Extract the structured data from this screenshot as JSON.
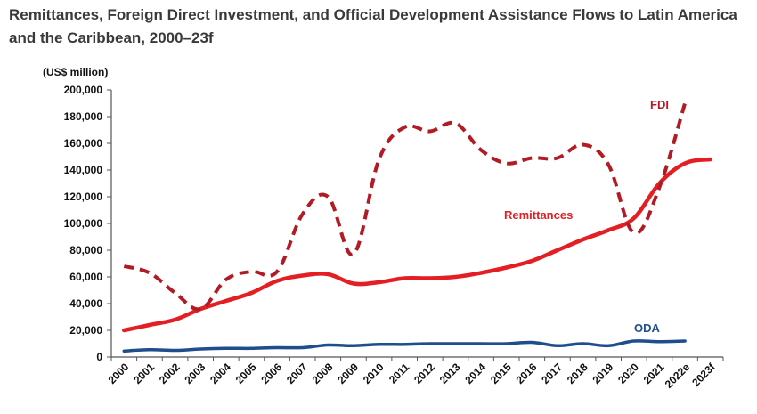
{
  "title": "Remittances, Foreign Direct Investment, and Official Development Assistance Flows to Latin America and the Caribbean, 2000–23f",
  "chart_data": {
    "type": "line",
    "title": "Remittances, Foreign Direct Investment, and Official Development Assistance Flows to Latin America and the Caribbean, 2000–23f",
    "ylabel": "(US$ million)",
    "xlabel": "",
    "ylim": [
      0,
      200000
    ],
    "y_ticks": [
      "0",
      "20,000",
      "40,000",
      "60,000",
      "80,000",
      "100,000",
      "120,000",
      "140,000",
      "160,000",
      "180,000",
      "200,000"
    ],
    "categories": [
      "2000",
      "2001",
      "2002",
      "2003",
      "2004",
      "2005",
      "2006",
      "2007",
      "2008",
      "2009",
      "2010",
      "2011",
      "2012",
      "2013",
      "2014",
      "2015",
      "2016",
      "2017",
      "2018",
      "2019",
      "2020",
      "2021",
      "2022e",
      "2023f"
    ],
    "series": [
      {
        "name": "FDI",
        "color": "#b11c24",
        "style": "dashed",
        "values": [
          68000,
          63000,
          48000,
          36000,
          58000,
          64000,
          64000,
          107000,
          120000,
          77000,
          148000,
          172000,
          169000,
          175000,
          155000,
          145000,
          149000,
          149000,
          159000,
          144000,
          93000,
          127000,
          190000,
          null
        ]
      },
      {
        "name": "Remittances",
        "color": "#e41e22",
        "style": "solid",
        "values": [
          20000,
          24000,
          28000,
          36000,
          42000,
          48000,
          57000,
          61000,
          62000,
          55000,
          56000,
          59000,
          59000,
          60000,
          63000,
          67000,
          72000,
          80000,
          88000,
          95000,
          104000,
          130000,
          145000,
          148000
        ]
      },
      {
        "name": "ODA",
        "color": "#1f4e8c",
        "style": "solid",
        "values": [
          4500,
          5500,
          5000,
          6000,
          6500,
          6500,
          7000,
          7000,
          9000,
          8500,
          9500,
          9500,
          10000,
          10000,
          10000,
          10000,
          11000,
          8500,
          10000,
          8500,
          12000,
          11500,
          12000,
          null
        ]
      }
    ]
  }
}
